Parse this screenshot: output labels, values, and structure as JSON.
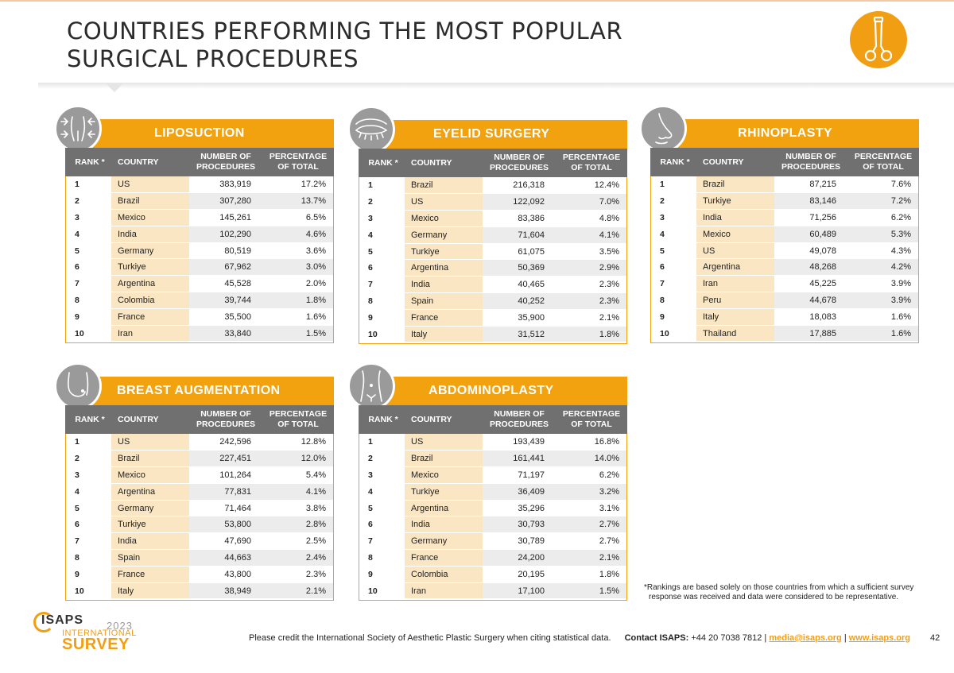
{
  "title": {
    "line1": "COUNTRIES PERFORMING THE MOST POPULAR",
    "line2": "SURGICAL PROCEDURES"
  },
  "badge_icon": "scissors-icon",
  "accent_color": "#f2a20f",
  "columns": {
    "rank": "RANK *",
    "country": "COUNTRY",
    "number_line1": "NUMBER OF",
    "number_line2": "PROCEDURES",
    "pct_line1": "PERCENTAGE",
    "pct_line2": "OF TOTAL"
  },
  "panels": [
    {
      "title": "LIPOSUCTION",
      "icon": "abdomen-icon",
      "rows": [
        {
          "rank": "1",
          "country": "US",
          "number": "383,919",
          "pct": "17.2%"
        },
        {
          "rank": "2",
          "country": "Brazil",
          "number": "307,280",
          "pct": "13.7%"
        },
        {
          "rank": "3",
          "country": "Mexico",
          "number": "145,261",
          "pct": "6.5%"
        },
        {
          "rank": "4",
          "country": "India",
          "number": "102,290",
          "pct": "4.6%"
        },
        {
          "rank": "5",
          "country": "Germany",
          "number": "80,519",
          "pct": "3.6%"
        },
        {
          "rank": "6",
          "country": "Turkiye",
          "number": "67,962",
          "pct": "3.0%"
        },
        {
          "rank": "7",
          "country": "Argentina",
          "number": "45,528",
          "pct": "2.0%"
        },
        {
          "rank": "8",
          "country": "Colombia",
          "number": "39,744",
          "pct": "1.8%"
        },
        {
          "rank": "9",
          "country": "France",
          "number": "35,500",
          "pct": "1.6%"
        },
        {
          "rank": "10",
          "country": "Iran",
          "number": "33,840",
          "pct": "1.5%"
        }
      ]
    },
    {
      "title": "EYELID SURGERY",
      "icon": "eye-icon",
      "rows": [
        {
          "rank": "1",
          "country": "Brazil",
          "number": "216,318",
          "pct": "12.4%"
        },
        {
          "rank": "2",
          "country": "US",
          "number": "122,092",
          "pct": "7.0%"
        },
        {
          "rank": "3",
          "country": "Mexico",
          "number": "83,386",
          "pct": "4.8%"
        },
        {
          "rank": "4",
          "country": "Germany",
          "number": "71,604",
          "pct": "4.1%"
        },
        {
          "rank": "5",
          "country": "Turkiye",
          "number": "61,075",
          "pct": "3.5%"
        },
        {
          "rank": "6",
          "country": "Argentina",
          "number": "50,369",
          "pct": "2.9%"
        },
        {
          "rank": "7",
          "country": "India",
          "number": "40,465",
          "pct": "2.3%"
        },
        {
          "rank": "8",
          "country": "Spain",
          "number": "40,252",
          "pct": "2.3%"
        },
        {
          "rank": "9",
          "country": "France",
          "number": "35,900",
          "pct": "2.1%"
        },
        {
          "rank": "10",
          "country": "Italy",
          "number": "31,512",
          "pct": "1.8%"
        }
      ]
    },
    {
      "title": "RHINOPLASTY",
      "icon": "nose-icon",
      "rows": [
        {
          "rank": "1",
          "country": "Brazil",
          "number": "87,215",
          "pct": "7.6%"
        },
        {
          "rank": "2",
          "country": "Turkiye",
          "number": "83,146",
          "pct": "7.2%"
        },
        {
          "rank": "3",
          "country": "India",
          "number": "71,256",
          "pct": "6.2%"
        },
        {
          "rank": "4",
          "country": "Mexico",
          "number": "60,489",
          "pct": "5.3%"
        },
        {
          "rank": "5",
          "country": "US",
          "number": "49,078",
          "pct": "4.3%"
        },
        {
          "rank": "6",
          "country": "Argentina",
          "number": "48,268",
          "pct": "4.2%"
        },
        {
          "rank": "7",
          "country": "Iran",
          "number": "45,225",
          "pct": "3.9%"
        },
        {
          "rank": "8",
          "country": "Peru",
          "number": "44,678",
          "pct": "3.9%"
        },
        {
          "rank": "9",
          "country": "Italy",
          "number": "18,083",
          "pct": "1.6%"
        },
        {
          "rank": "10",
          "country": "Thailand",
          "number": "17,885",
          "pct": "1.6%"
        }
      ]
    },
    {
      "title": "BREAST AUGMENTATION",
      "icon": "breast-icon",
      "rows": [
        {
          "rank": "1",
          "country": "US",
          "number": "242,596",
          "pct": "12.8%"
        },
        {
          "rank": "2",
          "country": "Brazil",
          "number": "227,451",
          "pct": "12.0%"
        },
        {
          "rank": "3",
          "country": "Mexico",
          "number": "101,264",
          "pct": "5.4%"
        },
        {
          "rank": "4",
          "country": "Argentina",
          "number": "77,831",
          "pct": "4.1%"
        },
        {
          "rank": "5",
          "country": "Germany",
          "number": "71,464",
          "pct": "3.8%"
        },
        {
          "rank": "6",
          "country": "Turkiye",
          "number": "53,800",
          "pct": "2.8%"
        },
        {
          "rank": "7",
          "country": "India",
          "number": "47,690",
          "pct": "2.5%"
        },
        {
          "rank": "8",
          "country": "Spain",
          "number": "44,663",
          "pct": "2.4%"
        },
        {
          "rank": "9",
          "country": "France",
          "number": "43,800",
          "pct": "2.3%"
        },
        {
          "rank": "10",
          "country": "Italy",
          "number": "38,949",
          "pct": "2.1%"
        }
      ]
    },
    {
      "title": "ABDOMINOPLASTY",
      "icon": "torso-icon",
      "rows": [
        {
          "rank": "1",
          "country": "US",
          "number": "193,439",
          "pct": "16.8%"
        },
        {
          "rank": "2",
          "country": "Brazil",
          "number": "161,441",
          "pct": "14.0%"
        },
        {
          "rank": "3",
          "country": "Mexico",
          "number": "71,197",
          "pct": "6.2%"
        },
        {
          "rank": "4",
          "country": "Turkiye",
          "number": "36,409",
          "pct": "3.2%"
        },
        {
          "rank": "5",
          "country": "Argentina",
          "number": "35,296",
          "pct": "3.1%"
        },
        {
          "rank": "6",
          "country": "India",
          "number": "30,793",
          "pct": "2.7%"
        },
        {
          "rank": "7",
          "country": "Germany",
          "number": "30,789",
          "pct": "2.7%"
        },
        {
          "rank": "8",
          "country": "France",
          "number": "24,200",
          "pct": "2.1%"
        },
        {
          "rank": "9",
          "country": "Colombia",
          "number": "20,195",
          "pct": "1.8%"
        },
        {
          "rank": "10",
          "country": "Iran",
          "number": "17,100",
          "pct": "1.5%"
        }
      ]
    }
  ],
  "footnote": {
    "line1": "*Rankings are based solely on those countries from which a sufficient survey",
    "line2": "response was received and data were considered to be representative."
  },
  "logo": {
    "isaps": "ISAPS",
    "year": "2023",
    "international": "INTERNATIONAL",
    "survey": "SURVEY"
  },
  "footer": {
    "credit": "Please credit the International Society of Aesthetic Plastic Surgery when citing statistical data.",
    "contact_label": "Contact ISAPS:",
    "phone": "+44 20 7038 7812",
    "sep1": "|",
    "email": "media@isaps.org",
    "sep2": "|",
    "website": "www.isaps.org",
    "page_number": "42"
  }
}
